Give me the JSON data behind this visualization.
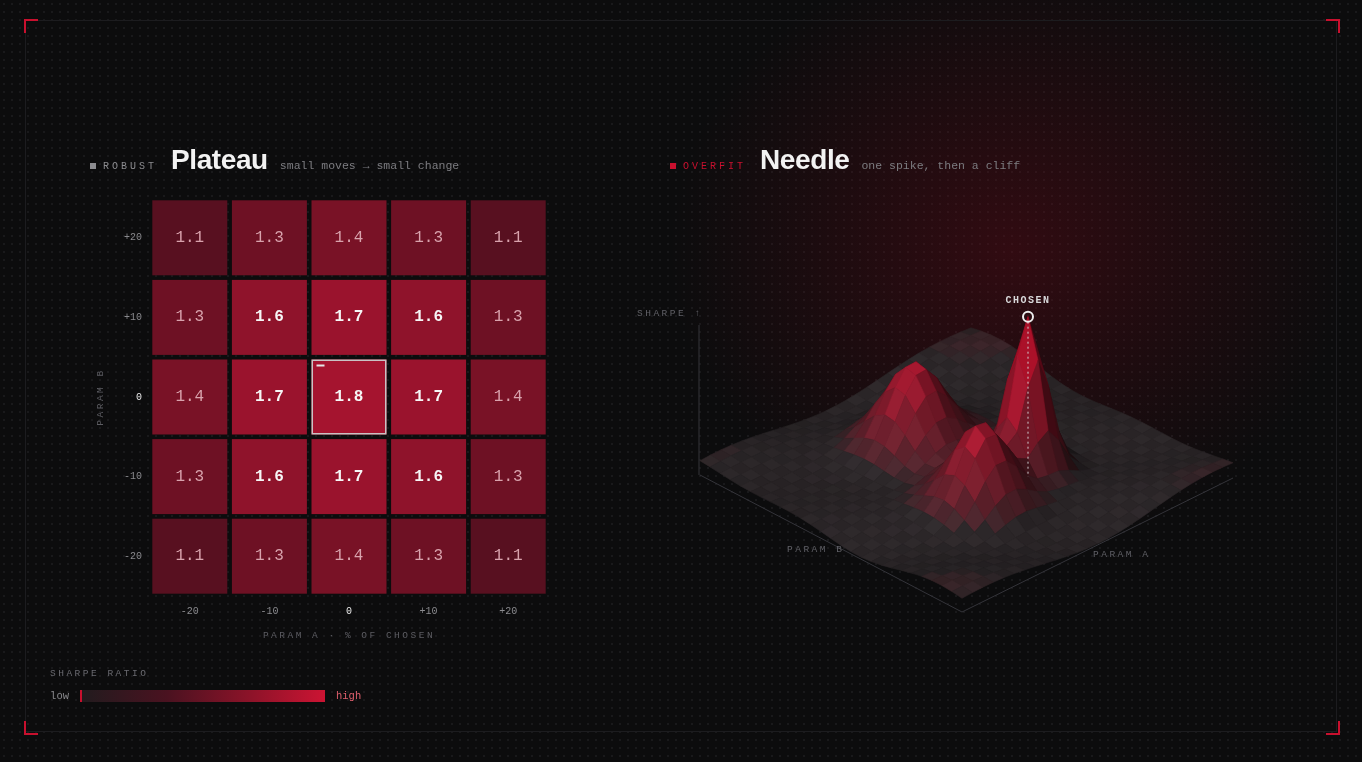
{
  "chart_data": [
    {
      "type": "heatmap",
      "title": "Plateau",
      "subtitle": "small moves → small change",
      "annotations": [
        "ROBUST",
        "low",
        "high"
      ],
      "categories": [
        "-20",
        "-10",
        "0",
        "+10",
        "+20"
      ],
      "y_categories": [
        "+20",
        "+10",
        "0",
        "-10",
        "-20"
      ],
      "cells": [
        [
          1.1,
          1.3,
          1.4,
          1.3,
          1.1
        ],
        [
          1.3,
          1.6,
          1.7,
          1.6,
          1.3
        ],
        [
          1.4,
          1.7,
          1.8,
          1.7,
          1.4
        ],
        [
          1.3,
          1.6,
          1.7,
          1.6,
          1.3
        ],
        [
          1.1,
          1.3,
          1.4,
          1.3,
          1.1
        ]
      ],
      "data_labels": true,
      "xlabel": "PARAM A · % OF CHOSEN",
      "ylabel": "PARAM B",
      "clabel": "SHARPE RATIO"
    },
    {
      "type": "other",
      "title": "Needle",
      "subtitle": "one spike, then a cliff",
      "annotations": [
        "OVERFIT",
        "CHOSEN",
        "PARAM B"
      ],
      "xlabel": "PARAM A",
      "ylabel": "SHARPE ↑"
    }
  ]
}
